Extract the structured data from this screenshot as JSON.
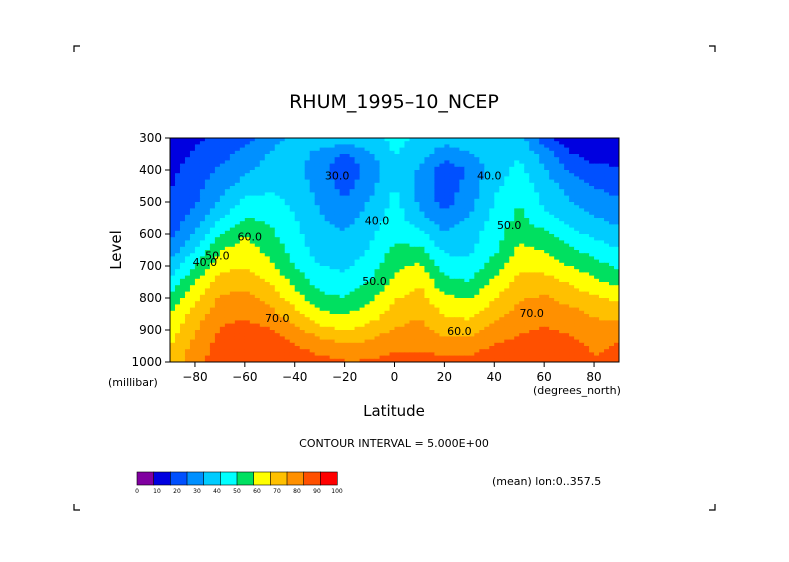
{
  "chart_data": {
    "type": "heatmap",
    "title": "RHUM_1995–10_NCEP",
    "xlabel": "Latitude",
    "ylabel": "Level",
    "x_unit": "(degrees_north)",
    "y_unit": "(millibar)",
    "xlim": [
      -90,
      90
    ],
    "ylim": [
      1000,
      300
    ],
    "x_ticks": [
      -80,
      -60,
      -40,
      -20,
      0,
      20,
      40,
      60,
      80
    ],
    "y_ticks": [
      300,
      400,
      500,
      600,
      700,
      800,
      900,
      1000
    ],
    "x_tick_labels": [
      "−80",
      "−60",
      "−40",
      "−20",
      "0",
      "20",
      "40",
      "60",
      "80"
    ],
    "y_tick_labels": [
      "300",
      "400",
      "500",
      "600",
      "700",
      "800",
      "900",
      "1000"
    ],
    "contour_interval_text": "CONTOUR INTERVAL = 5.000E+00",
    "mean_note": "(mean) lon:0..357.5",
    "latitudes": [
      -90,
      -80,
      -70,
      -60,
      -50,
      -40,
      -30,
      -20,
      -10,
      0,
      10,
      20,
      30,
      40,
      50,
      60,
      70,
      80,
      90
    ],
    "levels": [
      300,
      350,
      400,
      450,
      500,
      550,
      600,
      650,
      700,
      750,
      800,
      850,
      900,
      950,
      1000
    ],
    "values": [
      [
        8,
        15,
        18,
        22,
        30,
        36,
        42,
        38,
        40,
        44,
        40,
        38,
        40,
        40,
        38,
        20,
        10,
        8,
        8
      ],
      [
        12,
        18,
        22,
        28,
        34,
        38,
        30,
        24,
        32,
        42,
        38,
        28,
        32,
        40,
        40,
        30,
        18,
        12,
        12
      ],
      [
        15,
        20,
        26,
        32,
        36,
        36,
        28,
        18,
        28,
        40,
        32,
        20,
        26,
        38,
        44,
        34,
        24,
        20,
        18
      ],
      [
        16,
        22,
        30,
        36,
        40,
        38,
        30,
        22,
        30,
        42,
        30,
        20,
        28,
        40,
        46,
        38,
        30,
        24,
        22
      ],
      [
        18,
        24,
        34,
        44,
        44,
        40,
        32,
        26,
        34,
        44,
        32,
        22,
        30,
        42,
        50,
        40,
        34,
        30,
        26
      ],
      [
        20,
        28,
        40,
        50,
        48,
        42,
        34,
        30,
        36,
        46,
        36,
        28,
        34,
        44,
        52,
        44,
        38,
        34,
        30
      ],
      [
        22,
        34,
        50,
        58,
        52,
        44,
        36,
        34,
        40,
        48,
        44,
        34,
        38,
        46,
        56,
        52,
        44,
        40,
        36
      ],
      [
        28,
        42,
        58,
        62,
        56,
        46,
        38,
        36,
        42,
        52,
        52,
        40,
        40,
        48,
        60,
        58,
        52,
        46,
        42
      ],
      [
        36,
        50,
        64,
        66,
        60,
        50,
        42,
        40,
        46,
        56,
        60,
        46,
        44,
        54,
        64,
        64,
        58,
        54,
        48
      ],
      [
        44,
        58,
        70,
        72,
        66,
        56,
        46,
        44,
        50,
        60,
        66,
        52,
        50,
        60,
        70,
        70,
        66,
        60,
        56
      ],
      [
        52,
        64,
        76,
        78,
        72,
        62,
        52,
        50,
        56,
        66,
        70,
        60,
        58,
        66,
        74,
        76,
        72,
        68,
        64
      ],
      [
        58,
        70,
        80,
        82,
        78,
        70,
        60,
        58,
        62,
        70,
        74,
        66,
        64,
        72,
        78,
        80,
        78,
        74,
        72
      ],
      [
        62,
        74,
        84,
        86,
        84,
        78,
        70,
        66,
        70,
        76,
        78,
        72,
        72,
        78,
        82,
        84,
        82,
        78,
        80
      ],
      [
        66,
        78,
        86,
        88,
        88,
        84,
        80,
        76,
        78,
        82,
        82,
        80,
        80,
        84,
        86,
        88,
        86,
        82,
        84
      ],
      [
        70,
        80,
        88,
        90,
        90,
        88,
        86,
        84,
        84,
        86,
        86,
        86,
        86,
        88,
        88,
        92,
        88,
        84,
        86
      ]
    ],
    "contour_labels": [
      {
        "text": "30.0",
        "lat": -23,
        "lev": 430
      },
      {
        "text": "40.0",
        "lat": -7,
        "lev": 570
      },
      {
        "text": "50.0",
        "lat": -8,
        "lev": 760
      },
      {
        "text": "60.0",
        "lat": -58,
        "lev": 620
      },
      {
        "text": "50.0",
        "lat": -71,
        "lev": 680
      },
      {
        "text": "40.0",
        "lat": -76,
        "lev": 700
      },
      {
        "text": "70.0",
        "lat": -47,
        "lev": 875
      },
      {
        "text": "60.0",
        "lat": 26,
        "lev": 915
      },
      {
        "text": "40.0",
        "lat": 38,
        "lev": 430
      },
      {
        "text": "50.0",
        "lat": 46,
        "lev": 585
      },
      {
        "text": "70.0",
        "lat": 55,
        "lev": 860
      }
    ],
    "colorbar": {
      "colors": [
        "#8000a0",
        "#0000e0",
        "#0050ff",
        "#0090ff",
        "#00ccff",
        "#00ffff",
        "#00e060",
        "#ffff00",
        "#ffc000",
        "#ff9000",
        "#ff5000",
        "#ff0000"
      ],
      "tick_labels": [
        "0",
        "10",
        "20",
        "30",
        "40",
        "50",
        "60",
        "70",
        "80",
        "90",
        "100"
      ]
    }
  }
}
